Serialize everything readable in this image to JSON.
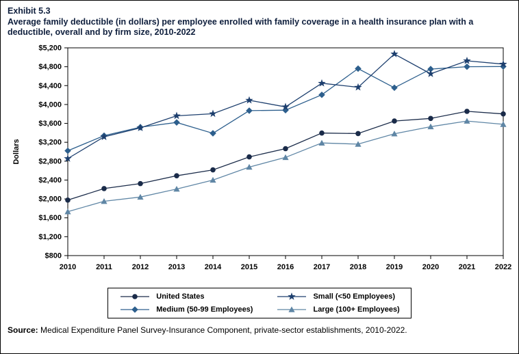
{
  "header": {
    "exhibit": "Exhibit 5.3",
    "title": "Average family deductible (in dollars) per employee enrolled with family coverage in a health insurance plan with a deductible, overall and by firm size, 2010-2022"
  },
  "chart_data": {
    "type": "line",
    "x": [
      2010,
      2011,
      2012,
      2013,
      2014,
      2015,
      2016,
      2017,
      2018,
      2019,
      2020,
      2021,
      2022
    ],
    "xlabel": "",
    "ylabel": "Dollars",
    "ylim": [
      800,
      5200
    ],
    "ytick_step": 400,
    "grid": false,
    "legend_position": "bottom",
    "series": [
      {
        "name": "United States",
        "marker": "circle",
        "color": "#1a2b49",
        "values": [
          1975,
          2220,
          2325,
          2490,
          2615,
          2890,
          3065,
          3395,
          3385,
          3650,
          3705,
          3855,
          3800
        ]
      },
      {
        "name": "Medium (50-99 Employees)",
        "marker": "diamond",
        "color": "#2d5f8d",
        "values": [
          3020,
          3340,
          3520,
          3620,
          3390,
          3870,
          3880,
          4205,
          4760,
          4355,
          4750,
          4800,
          4805
        ]
      },
      {
        "name": "Small (<50 Employees)",
        "marker": "star",
        "color": "#1d3f6e",
        "values": [
          2855,
          3315,
          3505,
          3760,
          3805,
          4090,
          3950,
          4450,
          4365,
          5070,
          4650,
          4925,
          4855
        ]
      },
      {
        "name": "Large (100+ Employees)",
        "marker": "triangle",
        "color": "#5f86a5",
        "values": [
          1730,
          1950,
          2040,
          2210,
          2400,
          2675,
          2880,
          3185,
          3160,
          3380,
          3530,
          3650,
          3580
        ]
      }
    ],
    "legend_order": [
      0,
      2,
      1,
      3
    ]
  },
  "source": {
    "label": "Source:",
    "text": " Medical Expenditure Panel Survey-Insurance Component, private-sector establishments, 2010-2022."
  }
}
